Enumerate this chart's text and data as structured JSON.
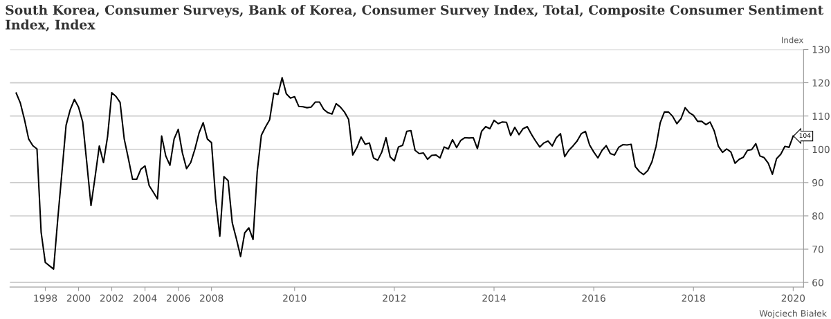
{
  "chart_data": {
    "type": "line",
    "title": "South Korea, Consumer Surveys, Bank of Korea, Consumer Survey Index, Total, Composite Consumer Sentiment Index, Index",
    "ylabel": "Index",
    "annotations": [
      "Wojciech Białek"
    ],
    "categories": [
      null,
      null,
      null,
      null,
      null,
      null,
      null,
      "1998",
      null,
      null,
      null,
      null,
      null,
      null,
      null,
      "2000",
      null,
      null,
      null,
      null,
      null,
      null,
      null,
      "2002",
      null,
      null,
      null,
      null,
      null,
      null,
      null,
      "2004",
      null,
      null,
      null,
      null,
      null,
      null,
      null,
      "2006",
      null,
      null,
      null,
      null,
      null,
      null,
      null,
      "2008",
      null,
      null,
      null,
      null,
      null,
      null,
      null,
      null,
      null,
      null,
      null,
      null,
      null,
      null,
      null,
      null,
      null,
      null,
      null,
      "2010",
      null,
      null,
      null,
      null,
      null,
      null,
      null,
      null,
      null,
      null,
      null,
      null,
      null,
      null,
      null,
      null,
      null,
      null,
      null,
      null,
      null,
      null,
      null,
      "2012",
      null,
      null,
      null,
      null,
      null,
      null,
      null,
      null,
      null,
      null,
      null,
      null,
      null,
      null,
      null,
      null,
      null,
      null,
      null,
      null,
      null,
      null,
      null,
      "2014",
      null,
      null,
      null,
      null,
      null,
      null,
      null,
      null,
      null,
      null,
      null,
      null,
      null,
      null,
      null,
      null,
      null,
      null,
      null,
      null,
      null,
      null,
      null,
      "2016",
      null,
      null,
      null,
      null,
      null,
      null,
      null,
      null,
      null,
      null,
      null,
      null,
      null,
      null,
      null,
      null,
      null,
      null,
      null,
      null,
      null,
      null,
      null,
      "2018",
      null,
      null,
      null,
      null,
      null,
      null,
      null,
      null,
      null,
      null,
      null,
      null,
      null,
      null,
      null,
      null,
      null,
      null,
      null,
      null,
      null,
      null,
      null,
      "2020"
    ],
    "series": [
      {
        "color": "#000000",
        "values": [
          116.9,
          113.9,
          108.9,
          103.1,
          101.1,
          100.1,
          75.1,
          66.0,
          65.0,
          64.0,
          79,
          93,
          107.2,
          111.9,
          115.0,
          112.7,
          108.2,
          95.8,
          83.1,
          91.8,
          101.0,
          96.0,
          103.9,
          117.0,
          115.9,
          114.1,
          103.1,
          97.2,
          91.0,
          91.0,
          94.0,
          95.0,
          89.1,
          87.1,
          85.1,
          104.0,
          98.0,
          95.2,
          103.1,
          106.0,
          98.9,
          94.2,
          96.0,
          100.0,
          104.9,
          108.0,
          103.1,
          102.0,
          85.1,
          73.9,
          91.8,
          90.6,
          77.9,
          73.1,
          67.8,
          74.9,
          76.4,
          72.9,
          93.2,
          104.2,
          106.7,
          108.9,
          116.9,
          116.5,
          121.5,
          116.7,
          115.4,
          115.8,
          112.9,
          112.8,
          112.5,
          112.7,
          114.2,
          114.2,
          112.0,
          111.0,
          110.6,
          113.7,
          112.7,
          111.2,
          109.0,
          98.3,
          100.5,
          103.7,
          101.5,
          101.9,
          97.4,
          96.7,
          99.2,
          103.5,
          97.7,
          96.5,
          100.7,
          101.2,
          105.4,
          105.6,
          99.7,
          98.7,
          98.9,
          97.0,
          98.2,
          98.3,
          97.4,
          100.7,
          100.1,
          102.9,
          100.5,
          102.7,
          103.5,
          103.4,
          103.5,
          100.2,
          105.4,
          106.8,
          106.2,
          108.7,
          107.7,
          108.2,
          108.1,
          104.1,
          106.6,
          104.4,
          106.2,
          106.8,
          104.5,
          102.5,
          100.7,
          101.9,
          102.5,
          101.0,
          103.5,
          104.7,
          97.8,
          99.7,
          101.0,
          102.5,
          104.7,
          105.4,
          101.3,
          99.2,
          97.4,
          99.7,
          101.1,
          98.7,
          98.3,
          100.6,
          101.4,
          101.3,
          101.5,
          94.8,
          93.3,
          92.4,
          93.6,
          96.2,
          100.9,
          108.0,
          111.2,
          111.2,
          109.9,
          107.7,
          109.2,
          112.5,
          111.0,
          110.2,
          108.4,
          108.4,
          107.4,
          108.2,
          105.5,
          100.9,
          99.1,
          100.1,
          99.2,
          95.8,
          97.0,
          97.6,
          99.7,
          99.9,
          101.7,
          98.0,
          97.5,
          95.8,
          92.5,
          97.2,
          98.5,
          100.9,
          100.6,
          104
        ],
        "value_labels": [
          null,
          null,
          null,
          null,
          null,
          null,
          null,
          null,
          null,
          null,
          null,
          null,
          null,
          null,
          null,
          null,
          null,
          null,
          null,
          null,
          null,
          null,
          null,
          null,
          null,
          null,
          null,
          null,
          null,
          null,
          null,
          null,
          null,
          null,
          null,
          null,
          null,
          null,
          null,
          null,
          null,
          null,
          null,
          null,
          null,
          null,
          null,
          null,
          null,
          null,
          null,
          null,
          null,
          null,
          null,
          null,
          null,
          null,
          null,
          null,
          null,
          null,
          null,
          null,
          null,
          null,
          null,
          null,
          null,
          null,
          null,
          null,
          null,
          null,
          null,
          null,
          null,
          null,
          null,
          null,
          null,
          null,
          null,
          null,
          null,
          null,
          null,
          null,
          null,
          null,
          null,
          null,
          null,
          null,
          null,
          null,
          null,
          null,
          null,
          null,
          null,
          null,
          null,
          null,
          null,
          null,
          null,
          null,
          null,
          null,
          null,
          null,
          null,
          null,
          null,
          null,
          null,
          null,
          null,
          null,
          null,
          null,
          null,
          null,
          null,
          null,
          null,
          null,
          null,
          null,
          null,
          null,
          null,
          null,
          null,
          null,
          null,
          null,
          null,
          null,
          null,
          null,
          null,
          null,
          null,
          null,
          null,
          null,
          null,
          null,
          null,
          null,
          null,
          null,
          null,
          null,
          null,
          null,
          null,
          null,
          null,
          null,
          null,
          null,
          null,
          null,
          null,
          null,
          null,
          null,
          null,
          null,
          null,
          null,
          null,
          null,
          null,
          null,
          null,
          null,
          null,
          null,
          null,
          null,
          null,
          null,
          null,
          "104"
        ]
      }
    ],
    "ylim": [
      58.6,
      130
    ],
    "yticks": [
      60,
      70,
      80,
      90,
      100,
      110,
      120,
      130
    ],
    "grid": "y",
    "legend": false,
    "marker": "none",
    "line_style": "solid"
  }
}
